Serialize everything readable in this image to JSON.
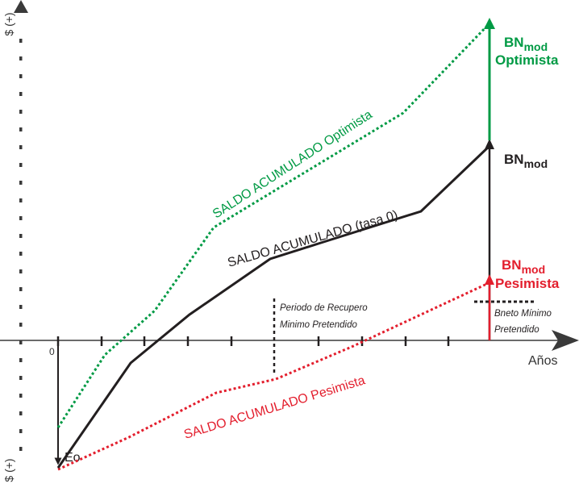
{
  "colors": {
    "base": "#231f20",
    "optimistic": "#009a44",
    "pessimistic": "#e31e2d",
    "axis": "#3a3a3a"
  },
  "axes": {
    "y_top_label": "$ (+)",
    "y_bottom_label": "$ (+)",
    "x_label": "Años",
    "origin_label": "0"
  },
  "labels": {
    "eo": "Eo",
    "period_line1": "Periodo de Recupero",
    "period_line2": "Minimo Pretendido",
    "bneto_line1": "Bneto Mínimo",
    "bneto_line2": "Pretendido"
  },
  "bn_labels": {
    "optimistic": {
      "main": "BN",
      "sub": "mod",
      "suffix": "Optimista"
    },
    "base": {
      "main": "BN",
      "sub": "mod"
    },
    "pessimistic": {
      "main": "BN",
      "sub": "mod",
      "suffix": "Pesimista"
    }
  },
  "curves": {
    "optimistic": "SALDO ACUMULADO Optimista",
    "base": "SALDO ACUMULADO (tasa 0)",
    "pessimistic": "SALDO ACUMULADO Pesimista"
  }
}
